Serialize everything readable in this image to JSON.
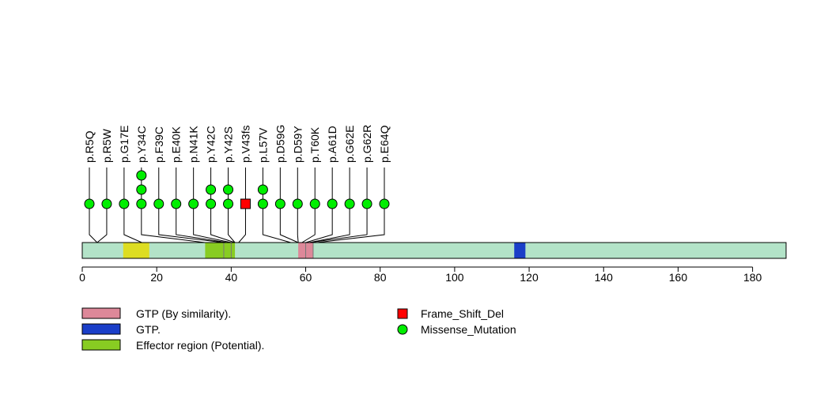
{
  "chart_data": {
    "type": "lollipop",
    "protein_length": 189,
    "xlim": [
      0,
      189
    ],
    "xticks": [
      0,
      20,
      40,
      60,
      80,
      100,
      120,
      140,
      160,
      180
    ],
    "backbone_color": "#b3e3c8",
    "regions": [
      {
        "start": 11,
        "end": 18,
        "color": "#dddd22",
        "label": ""
      },
      {
        "start": 33,
        "end": 41,
        "color": "#88cc22",
        "label": "Effector region (Potential)."
      },
      {
        "start": 58,
        "end": 62,
        "color": "#dd8899",
        "label": "GTP (By similarity)."
      },
      {
        "start": 116,
        "end": 119,
        "color": "#1a3ec8",
        "label": "GTP."
      }
    ],
    "region_marks": [
      {
        "pos": 38,
        "color": "#88cc22"
      },
      {
        "pos": 40,
        "color": "#88cc22"
      },
      {
        "pos": 60,
        "color": "#dd8899"
      },
      {
        "pos": 62,
        "color": "#dd8899"
      }
    ],
    "mutations": [
      {
        "label": "p.R5Q",
        "position": 4,
        "count": 1,
        "type": "Missense_Mutation"
      },
      {
        "label": "p.R5W",
        "position": 4,
        "count": 1,
        "type": "Missense_Mutation"
      },
      {
        "label": "p.G17E",
        "position": 16,
        "count": 1,
        "type": "Missense_Mutation"
      },
      {
        "label": "p.Y34C",
        "position": 33,
        "count": 3,
        "type": "Missense_Mutation"
      },
      {
        "label": "p.F39C",
        "position": 38,
        "count": 1,
        "type": "Missense_Mutation"
      },
      {
        "label": "p.E40K",
        "position": 39,
        "count": 1,
        "type": "Missense_Mutation"
      },
      {
        "label": "p.N41K",
        "position": 40,
        "count": 1,
        "type": "Missense_Mutation"
      },
      {
        "label": "p.Y42C",
        "position": 41,
        "count": 2,
        "type": "Missense_Mutation"
      },
      {
        "label": "p.Y42S",
        "position": 41,
        "count": 2,
        "type": "Missense_Mutation"
      },
      {
        "label": "p.V43fs",
        "position": 42,
        "count": 1,
        "type": "Frame_Shift_Del"
      },
      {
        "label": "p.L57V",
        "position": 56,
        "count": 2,
        "type": "Missense_Mutation"
      },
      {
        "label": "p.D59G",
        "position": 58,
        "count": 1,
        "type": "Missense_Mutation"
      },
      {
        "label": "p.D59Y",
        "position": 58,
        "count": 1,
        "type": "Missense_Mutation"
      },
      {
        "label": "p.T60K",
        "position": 59,
        "count": 1,
        "type": "Missense_Mutation"
      },
      {
        "label": "p.A61D",
        "position": 60,
        "count": 1,
        "type": "Missense_Mutation"
      },
      {
        "label": "p.G62E",
        "position": 61,
        "count": 1,
        "type": "Missense_Mutation"
      },
      {
        "label": "p.G62R",
        "position": 61,
        "count": 1,
        "type": "Missense_Mutation"
      },
      {
        "label": "p.E64Q",
        "position": 63,
        "count": 1,
        "type": "Missense_Mutation"
      }
    ],
    "legend": {
      "regions": [
        {
          "label": "GTP (By similarity).",
          "color": "#dd8899"
        },
        {
          "label": "GTP.",
          "color": "#1a3ec8"
        },
        {
          "label": "Effector region (Potential).",
          "color": "#88cc22"
        }
      ],
      "mutation_types": [
        {
          "label": "Frame_Shift_Del",
          "color": "#ff0000",
          "shape": "square"
        },
        {
          "label": "Missense_Mutation",
          "color": "#00ee00",
          "shape": "circle"
        }
      ]
    }
  }
}
